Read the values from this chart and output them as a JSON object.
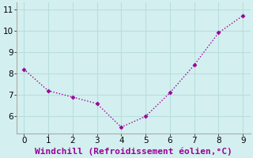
{
  "x": [
    0,
    1,
    2,
    3,
    4,
    5,
    6,
    7,
    8,
    9
  ],
  "y": [
    8.2,
    7.2,
    6.9,
    6.6,
    5.5,
    6.0,
    7.1,
    8.4,
    9.9,
    10.7
  ],
  "line_color": "#990099",
  "marker": "D",
  "marker_size": 2.5,
  "xlabel": "Windchill (Refroidissement éolien,°C)",
  "xlabel_fontsize": 8,
  "xlim": [
    -0.3,
    9.3
  ],
  "ylim": [
    5.2,
    11.3
  ],
  "xticks": [
    0,
    1,
    2,
    3,
    4,
    5,
    6,
    7,
    8,
    9
  ],
  "yticks": [
    6,
    7,
    8,
    9,
    10,
    11
  ],
  "grid_color": "#b8dede",
  "background_color": "#d4efef",
  "tick_fontsize": 7.5,
  "line_width": 1.0,
  "spine_color": "#aaaaaa"
}
